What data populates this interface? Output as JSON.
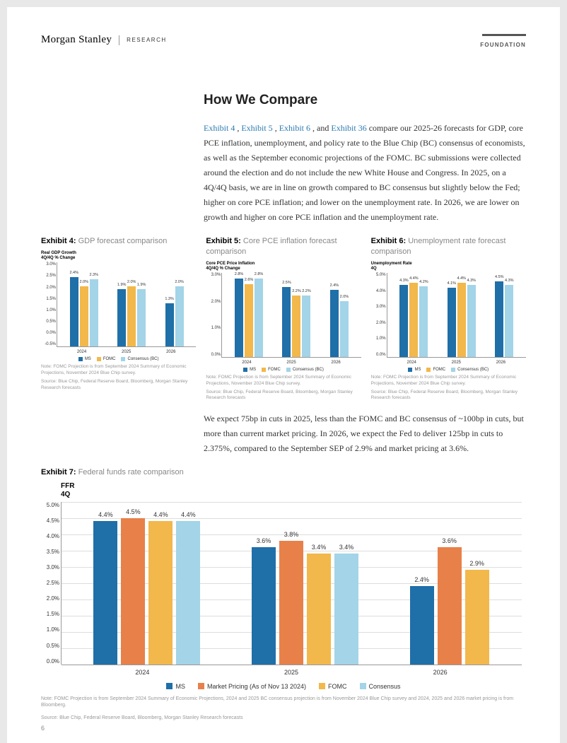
{
  "header": {
    "logo": "Morgan Stanley",
    "research": "RESEARCH",
    "foundation": "FOUNDATION"
  },
  "section": {
    "title": "How We Compare",
    "para1_pre": "",
    "link1": "Exhibit 4",
    "sep": " ,  ",
    "link2": "Exhibit 5",
    "link3": "Exhibit 6",
    "mid": " , and  ",
    "link4": "Exhibit 36",
    "para1_post": "  compare our 2025-26 forecasts for GDP, core PCE inflation, unemployment, and policy rate to the Blue Chip (BC) consensus of economists, as well as the September economic projections of the FOMC. BC submissions were collected around the election and do not include the new White House and Congress. In 2025, on a 4Q/4Q basis, we are in line on growth compared to BC consensus but slightly below the Fed; higher on core PCE inflation; and lower on the unemployment rate. In 2026, we are lower on growth and higher on core PCE inflation and the unemployment rate.",
    "para2": "We expect 75bp in cuts in 2025, less than the FOMC and BC consensus of ~100bp in cuts, but more than current market pricing. In 2026, we expect the Fed to deliver 125bp in cuts to 2.375%, compared to the September SEP of 2.9% and market pricing at 3.6%."
  },
  "colors": {
    "ms": "#1f6fa8",
    "fomc": "#f2b84b",
    "consensus": "#a3d4e8",
    "market": "#e8804a",
    "grid": "#dddddd",
    "axis": "#999999"
  },
  "ex4": {
    "num": "Exhibit 4:",
    "title": "GDP forecast comparison",
    "chart_title": "Real GDP Growth\n4Q/4Q % Change",
    "ymax": 3.0,
    "ymin": -0.5,
    "ystep": 0.5,
    "yticks": [
      "3.0%",
      "2.5%",
      "2.0%",
      "1.5%",
      "1.0%",
      "0.5%",
      "0.0%",
      "-0.5%"
    ],
    "years": [
      "2024",
      "2025",
      "2026"
    ],
    "series": [
      "MS",
      "FOMC",
      "Consensus (BC)"
    ],
    "data": [
      [
        {
          "v": 2.4,
          "l": "2.4%"
        },
        {
          "v": 2.0,
          "l": "2.0%"
        },
        {
          "v": 2.3,
          "l": "2.3%"
        }
      ],
      [
        {
          "v": 1.9,
          "l": "1.9%"
        },
        {
          "v": 2.0,
          "l": "2.0%"
        },
        {
          "v": 1.9,
          "l": "1.9%"
        }
      ],
      [
        {
          "v": 1.3,
          "l": "1.3%"
        },
        null,
        {
          "v": 2.0,
          "l": "2.0%"
        }
      ]
    ],
    "note": "Note: FOMC Projection is from September 2024 Summary of Economic Projections, November 2024 Blue Chip survey.",
    "source": "Source: Blue Chip, Federal Reserve Board, Bloomberg, Morgan Stanley Research forecasts"
  },
  "ex5": {
    "num": "Exhibit 5:",
    "title": "Core PCE inflation forecast comparison",
    "chart_title": "Core PCE Price Inflation\n4Q/4Q % Change",
    "ymax": 3.0,
    "ymin": 0.0,
    "ystep": 1.0,
    "yticks": [
      "3.0%",
      "2.0%",
      "1.0%",
      "0.0%"
    ],
    "years": [
      "2024",
      "2025",
      "2026"
    ],
    "series": [
      "MS",
      "FOMC",
      "Consensus (BC)"
    ],
    "data": [
      [
        {
          "v": 2.8,
          "l": "2.8%"
        },
        {
          "v": 2.6,
          "l": "2.6%"
        },
        {
          "v": 2.8,
          "l": "2.8%"
        }
      ],
      [
        {
          "v": 2.5,
          "l": "2.5%"
        },
        {
          "v": 2.2,
          "l": "2.2%"
        },
        {
          "v": 2.2,
          "l": "2.2%"
        }
      ],
      [
        {
          "v": 2.4,
          "l": "2.4%"
        },
        null,
        {
          "v": 2.0,
          "l": "2.0%"
        }
      ]
    ],
    "note": "Note: FOMC Projection is from September 2024 Summary of Economic Projections, November 2024 Blue Chip survey.",
    "source": "Source: Blue Chip, Federal Reserve Board, Bloomberg, Morgan Stanley Research forecasts"
  },
  "ex6": {
    "num": "Exhibit 6:",
    "title": "Unemployment rate forecast comparison",
    "chart_title": "Unemployment Rate\n4Q",
    "ymax": 5.0,
    "ymin": 0.0,
    "ystep": 1.0,
    "yticks": [
      "5.0%",
      "4.0%",
      "3.0%",
      "2.0%",
      "1.0%",
      "0.0%"
    ],
    "years": [
      "2024",
      "2025",
      "2026"
    ],
    "series": [
      "MS",
      "FOMC",
      "Consensus (BC)"
    ],
    "data": [
      [
        {
          "v": 4.3,
          "l": "4.3%"
        },
        {
          "v": 4.4,
          "l": "4.4%"
        },
        {
          "v": 4.2,
          "l": "4.2%"
        }
      ],
      [
        {
          "v": 4.1,
          "l": "4.1%"
        },
        {
          "v": 4.4,
          "l": "4.4%"
        },
        {
          "v": 4.3,
          "l": "4.3%"
        }
      ],
      [
        {
          "v": 4.5,
          "l": "4.5%"
        },
        null,
        {
          "v": 4.3,
          "l": "4.3%"
        }
      ]
    ],
    "note": "Note: FOMC Projection is from September 2024 Summary of Economic Projections, November 2024 Blue Chip survey.",
    "source": "Source: Blue Chip, Federal Reserve Board, Bloomberg, Morgan Stanley Research forecasts"
  },
  "ex7": {
    "num": "Exhibit 7:",
    "title": "Federal funds rate comparison",
    "chart_title": "FFR\n4Q",
    "ymax": 5.0,
    "ymin": 0.0,
    "ystep": 0.5,
    "yticks": [
      "5.0%",
      "4.5%",
      "4.0%",
      "3.5%",
      "3.0%",
      "2.5%",
      "2.0%",
      "1.5%",
      "1.0%",
      "0.5%",
      "0.0%"
    ],
    "years": [
      "2024",
      "2025",
      "2026"
    ],
    "series": [
      "MS",
      "Market Pricing (As of Nov 13 2024)",
      "FOMC",
      "Consensus"
    ],
    "series_colors": [
      "ms",
      "market",
      "fomc",
      "consensus"
    ],
    "data": [
      [
        {
          "v": 4.4,
          "l": "4.4%"
        },
        {
          "v": 4.5,
          "l": "4.5%"
        },
        {
          "v": 4.4,
          "l": "4.4%"
        },
        {
          "v": 4.4,
          "l": "4.4%"
        }
      ],
      [
        {
          "v": 3.6,
          "l": "3.6%"
        },
        {
          "v": 3.8,
          "l": "3.8%"
        },
        {
          "v": 3.4,
          "l": "3.4%"
        },
        {
          "v": 3.4,
          "l": "3.4%"
        }
      ],
      [
        {
          "v": 2.4,
          "l": "2.4%"
        },
        {
          "v": 3.6,
          "l": "3.6%"
        },
        {
          "v": 2.9,
          "l": "2.9%"
        },
        null
      ]
    ],
    "note": "Note: FOMC Projection is from September 2024 Summary of Economic Projections, 2024 and 2025 BC consensus projection is from November 2024 Blue Chip survey and 2024, 2025 and 2026 market pricing is from Bloomberg.",
    "source": "Source: Blue Chip, Federal Reserve Board, Bloomberg, Morgan Stanley Research forecasts"
  },
  "page_num": "6"
}
